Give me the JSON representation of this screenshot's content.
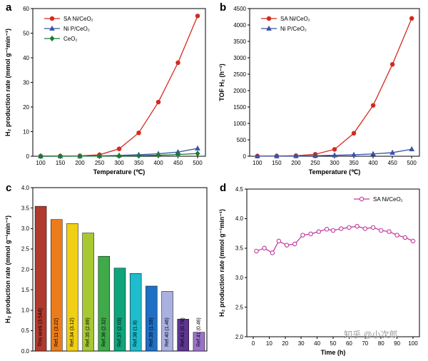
{
  "figure": {
    "panel_labels": {
      "a": "a",
      "b": "b",
      "c": "c",
      "d": "d"
    },
    "watermark": "知乎 @小次郎"
  },
  "chart_data": [
    {
      "id": "a",
      "type": "line",
      "xlabel": "Temperature (℃)",
      "ylabel": "H₂ production rate (mmol g⁻¹min⁻¹)",
      "xlim": [
        80,
        520
      ],
      "ylim": [
        0,
        60
      ],
      "xticks": [
        100,
        150,
        200,
        250,
        300,
        350,
        400,
        450,
        500
      ],
      "yticks": [
        0,
        10,
        20,
        30,
        40,
        50,
        60
      ],
      "legend": "top-left",
      "series": [
        {
          "name": "SA Ni/CeO₂",
          "color": "#d42a20",
          "marker": "circle",
          "x": [
            100,
            150,
            200,
            250,
            300,
            350,
            400,
            450,
            500
          ],
          "y": [
            0.05,
            0.08,
            0.15,
            0.6,
            3.0,
            9.5,
            22,
            38,
            57
          ]
        },
        {
          "name": "Ni P/CeO₂",
          "color": "#3a53a4",
          "marker": "triangle",
          "x": [
            100,
            150,
            200,
            250,
            300,
            350,
            400,
            450,
            500
          ],
          "y": [
            0.02,
            0.03,
            0.06,
            0.15,
            0.35,
            0.6,
            1.0,
            1.7,
            3.2
          ]
        },
        {
          "name": "CeO₂",
          "color": "#1d7a34",
          "marker": "diamond",
          "x": [
            100,
            150,
            200,
            250,
            300,
            350,
            400,
            450,
            500
          ],
          "y": [
            0.01,
            0.02,
            0.03,
            0.06,
            0.12,
            0.2,
            0.4,
            0.7,
            1.1
          ]
        }
      ]
    },
    {
      "id": "b",
      "type": "line",
      "xlabel": "Temperature (℃)",
      "ylabel": "TOF H₂ (h⁻¹)",
      "xlim": [
        80,
        520
      ],
      "ylim": [
        0,
        4500
      ],
      "xticks": [
        100,
        150,
        200,
        250,
        300,
        350,
        400,
        450,
        500
      ],
      "yticks": [
        0,
        500,
        1000,
        1500,
        2000,
        2500,
        3000,
        3500,
        4000,
        4500
      ],
      "legend": "top-left",
      "series": [
        {
          "name": "SA Ni/CeO₂",
          "color": "#d42a20",
          "marker": "circle",
          "x": [
            100,
            150,
            200,
            250,
            300,
            350,
            400,
            450,
            500
          ],
          "y": [
            5,
            8,
            15,
            60,
            210,
            700,
            1550,
            2800,
            4200
          ]
        },
        {
          "name": "Ni P/CeO₂",
          "color": "#3a53a4",
          "marker": "triangle",
          "x": [
            100,
            150,
            200,
            250,
            300,
            350,
            400,
            450,
            500
          ],
          "y": [
            2,
            4,
            8,
            15,
            30,
            45,
            70,
            110,
            215
          ]
        }
      ]
    },
    {
      "id": "c",
      "type": "bar",
      "xlabel": "",
      "ylabel": "H₂ production rate (mmol g⁻¹min⁻¹)",
      "ylim": [
        0,
        4.0
      ],
      "yticks": [
        0,
        0.5,
        1.0,
        1.5,
        2.0,
        2.5,
        3.0,
        3.5,
        4.0
      ],
      "ytick_labels": [
        "0.0",
        "0.5",
        "1.0",
        "1.5",
        "2.0",
        "2.5",
        "3.0",
        "3.5",
        "4.0"
      ],
      "bars": [
        {
          "label": "This work (3.544)",
          "value": 3.544,
          "color": "#b03a2e"
        },
        {
          "label": "Ref.11 (3.22)",
          "value": 3.22,
          "color": "#ec7c1a"
        },
        {
          "label": "Ref.34 (3.12)",
          "value": 3.12,
          "color": "#f0cf14"
        },
        {
          "label": "Ref.35 (2.89)",
          "value": 2.89,
          "color": "#a8c832"
        },
        {
          "label": "Ref.36 (2.32)",
          "value": 2.32,
          "color": "#3faa49"
        },
        {
          "label": "Ref.37 (2.03)",
          "value": 2.03,
          "color": "#0fa57c"
        },
        {
          "label": "Ref.38 (1.9)",
          "value": 1.9,
          "color": "#1ebccc"
        },
        {
          "label": "Ref.39 (1.59)",
          "value": 1.59,
          "color": "#1f6fc4"
        },
        {
          "label": "Ref.40 (1.46)",
          "value": 1.46,
          "color": "#aab0e0"
        },
        {
          "label": "Ref.41 (0.78)",
          "value": 0.78,
          "color": "#5e3591"
        },
        {
          "label": "Ref.41 (0.46)",
          "value": 0.46,
          "color": "#9b72c9"
        }
      ]
    },
    {
      "id": "d",
      "type": "line",
      "xlabel": "Time (h)",
      "ylabel": "H₂ production rate (mmol g⁻¹min⁻¹)",
      "xlim": [
        -4,
        104
      ],
      "ylim": [
        2.0,
        4.5
      ],
      "xticks": [
        0,
        10,
        20,
        30,
        40,
        50,
        60,
        70,
        80,
        90,
        100
      ],
      "yticks": [
        2.0,
        2.5,
        3.0,
        3.5,
        4.0,
        4.5
      ],
      "ytick_labels": [
        "2.0",
        "2.5",
        "3.0",
        "3.5",
        "4.0",
        "4.5"
      ],
      "legend": "top-right",
      "series": [
        {
          "name": "SA Ni/CeO₂",
          "color": "#c13ba0",
          "marker": "circle",
          "open": true,
          "x": [
            2,
            7,
            12,
            16,
            21,
            26,
            31,
            36,
            41,
            46,
            50,
            55,
            60,
            65,
            70,
            75,
            80,
            85,
            90,
            95,
            100
          ],
          "y": [
            3.45,
            3.5,
            3.42,
            3.62,
            3.55,
            3.57,
            3.72,
            3.74,
            3.78,
            3.82,
            3.8,
            3.83,
            3.85,
            3.87,
            3.83,
            3.85,
            3.8,
            3.78,
            3.72,
            3.68,
            3.62
          ]
        }
      ]
    }
  ]
}
